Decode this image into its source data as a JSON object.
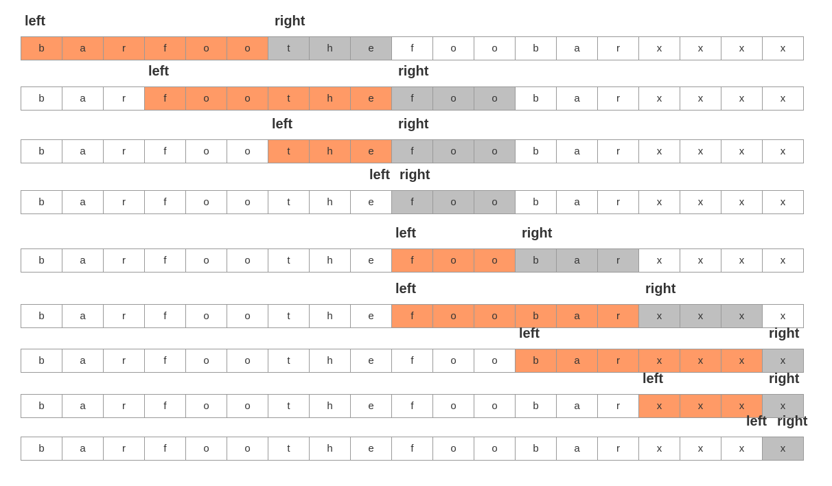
{
  "colors": {
    "window": "#ff9a66",
    "scan": "#bfbfbf",
    "empty": "#ffffff",
    "border": "#999999",
    "text": "#333333"
  },
  "labels": {
    "left": "left",
    "right": "right"
  },
  "steps": [
    {
      "cells": [
        "b",
        "a",
        "r",
        "f",
        "o",
        "o",
        "t",
        "h",
        "e",
        "f",
        "o",
        "o",
        "b",
        "a",
        "r",
        "x",
        "x",
        "x",
        "x"
      ],
      "left": 0,
      "right": 6,
      "window": [
        0,
        6
      ],
      "scan": [
        6,
        9
      ]
    },
    {
      "cells": [
        "b",
        "a",
        "r",
        "f",
        "o",
        "o",
        "t",
        "h",
        "e",
        "f",
        "o",
        "o",
        "b",
        "a",
        "r",
        "x",
        "x",
        "x",
        "x"
      ],
      "left": 3,
      "right": 9,
      "window": [
        3,
        9
      ],
      "scan": [
        9,
        12
      ]
    },
    {
      "cells": [
        "b",
        "a",
        "r",
        "f",
        "o",
        "o",
        "t",
        "h",
        "e",
        "f",
        "o",
        "o",
        "b",
        "a",
        "r",
        "x",
        "x",
        "x",
        "x"
      ],
      "left": 6,
      "right": 9,
      "window": [
        6,
        9
      ],
      "scan": [
        9,
        12
      ]
    },
    {
      "cells": [
        "b",
        "a",
        "r",
        "f",
        "o",
        "o",
        "t",
        "h",
        "e",
        "f",
        "o",
        "o",
        "b",
        "a",
        "r",
        "x",
        "x",
        "x",
        "x"
      ],
      "left": 9,
      "right": 9,
      "window": [
        9,
        9
      ],
      "scan": [
        9,
        12
      ]
    },
    {
      "cells": [
        "b",
        "a",
        "r",
        "f",
        "o",
        "o",
        "t",
        "h",
        "e",
        "f",
        "o",
        "o",
        "b",
        "a",
        "r",
        "x",
        "x",
        "x",
        "x"
      ],
      "left": 9,
      "right": 12,
      "window": [
        9,
        12
      ],
      "scan": [
        12,
        15
      ]
    },
    {
      "cells": [
        "b",
        "a",
        "r",
        "f",
        "o",
        "o",
        "t",
        "h",
        "e",
        "f",
        "o",
        "o",
        "b",
        "a",
        "r",
        "x",
        "x",
        "x",
        "x"
      ],
      "left": 9,
      "right": 15,
      "window": [
        9,
        15
      ],
      "scan": [
        15,
        18
      ]
    },
    {
      "cells": [
        "b",
        "a",
        "r",
        "f",
        "o",
        "o",
        "t",
        "h",
        "e",
        "f",
        "o",
        "o",
        "b",
        "a",
        "r",
        "x",
        "x",
        "x",
        "x"
      ],
      "left": 12,
      "right": 18,
      "window": [
        12,
        18
      ],
      "scan": [
        18,
        19
      ]
    },
    {
      "cells": [
        "b",
        "a",
        "r",
        "f",
        "o",
        "o",
        "t",
        "h",
        "e",
        "f",
        "o",
        "o",
        "b",
        "a",
        "r",
        "x",
        "x",
        "x",
        "x"
      ],
      "left": 15,
      "right": 18,
      "window": [
        15,
        18
      ],
      "scan": [
        18,
        19
      ]
    },
    {
      "cells": [
        "b",
        "a",
        "r",
        "f",
        "o",
        "o",
        "t",
        "h",
        "e",
        "f",
        "o",
        "o",
        "b",
        "a",
        "r",
        "x",
        "x",
        "x",
        "x"
      ],
      "left": 18,
      "right": 18,
      "window": [
        18,
        18
      ],
      "scan": [
        18,
        19
      ]
    }
  ]
}
